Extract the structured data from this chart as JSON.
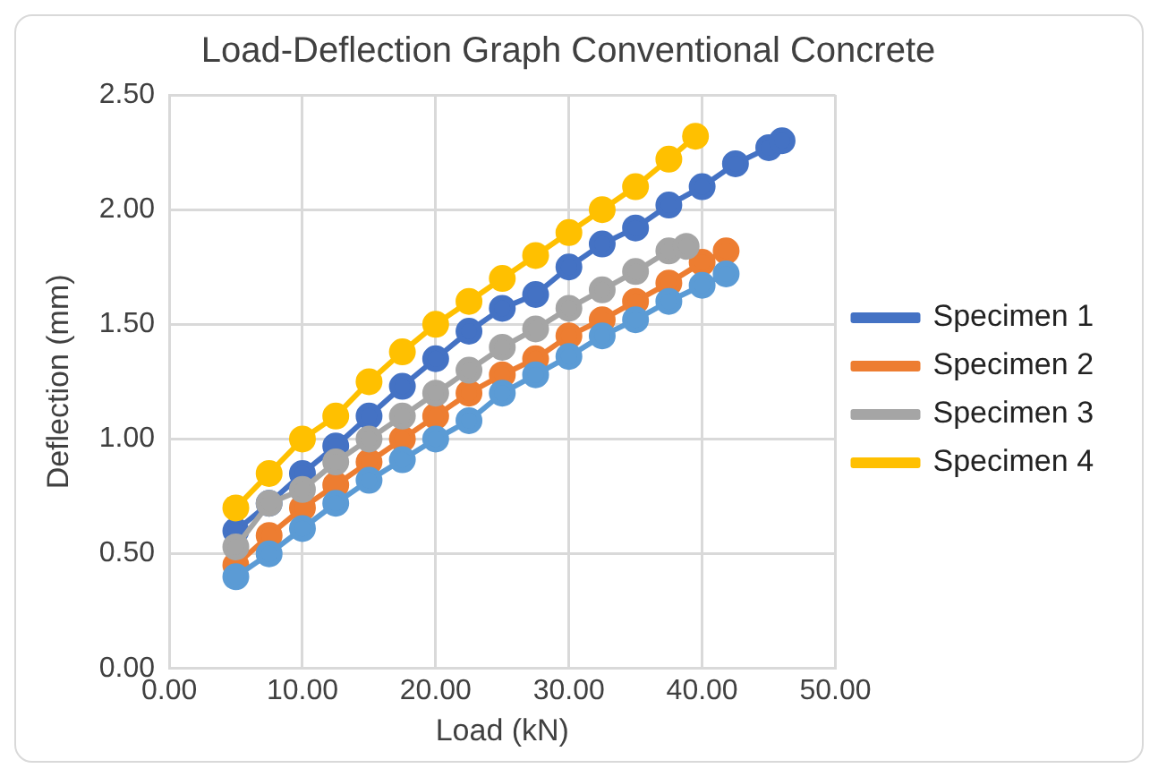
{
  "chart_data": {
    "type": "line",
    "title": "Load-Deflection Graph Conventional Concrete",
    "xlabel": "Load (kN)",
    "ylabel": "Deflection (mm)",
    "xlim": [
      0,
      50
    ],
    "ylim": [
      0,
      2.5
    ],
    "xticks": [
      {
        "value": 0,
        "label": "0.00"
      },
      {
        "value": 10,
        "label": "10.00"
      },
      {
        "value": 20,
        "label": "20.00"
      },
      {
        "value": 30,
        "label": "30.00"
      },
      {
        "value": 40,
        "label": "40.00"
      },
      {
        "value": 50,
        "label": "50.00"
      }
    ],
    "yticks": [
      {
        "value": 0,
        "label": "0.00"
      },
      {
        "value": 0.5,
        "label": "0.50"
      },
      {
        "value": 1,
        "label": "1.00"
      },
      {
        "value": 1.5,
        "label": "1.50"
      },
      {
        "value": 2,
        "label": "2.00"
      },
      {
        "value": 2.5,
        "label": "2.50"
      }
    ],
    "grid": true,
    "legend": "right",
    "marker": "circle",
    "line_style": "solid",
    "series": [
      {
        "name": "Specimen 1",
        "color": "#4472c4",
        "x": [
          5,
          7.5,
          10,
          12.5,
          15,
          17.5,
          20,
          22.5,
          25,
          27.5,
          30,
          32.5,
          35,
          37.5,
          40,
          42.5,
          45,
          46
        ],
        "values": [
          0.6,
          0.72,
          0.85,
          0.97,
          1.1,
          1.23,
          1.35,
          1.47,
          1.57,
          1.63,
          1.75,
          1.85,
          1.92,
          2.02,
          2.1,
          2.2,
          2.27,
          2.3
        ]
      },
      {
        "name": "Specimen 2",
        "color": "#ed7d31",
        "x": [
          5,
          7.5,
          10,
          12.5,
          15,
          17.5,
          20,
          22.5,
          25,
          27.5,
          30,
          32.5,
          35,
          37.5,
          40,
          41.8
        ],
        "values": [
          0.45,
          0.58,
          0.7,
          0.8,
          0.9,
          1.0,
          1.1,
          1.2,
          1.28,
          1.35,
          1.45,
          1.52,
          1.6,
          1.68,
          1.77,
          1.82
        ]
      },
      {
        "name": "Specimen 3",
        "color": "#a5a5a5",
        "x": [
          5,
          7.5,
          10,
          12.5,
          15,
          17.5,
          20,
          22.5,
          25,
          27.5,
          30,
          32.5,
          35,
          37.5,
          38.8
        ],
        "values": [
          0.53,
          0.72,
          0.78,
          0.9,
          1.0,
          1.1,
          1.2,
          1.3,
          1.4,
          1.48,
          1.57,
          1.65,
          1.73,
          1.82,
          1.84
        ]
      },
      {
        "name": "Specimen 4",
        "color": "#ffc000",
        "x": [
          5,
          7.5,
          10,
          12.5,
          15,
          17.5,
          20,
          22.5,
          25,
          27.5,
          30,
          32.5,
          35,
          37.5,
          39.5
        ],
        "values": [
          0.7,
          0.85,
          1.0,
          1.1,
          1.25,
          1.38,
          1.5,
          1.6,
          1.7,
          1.8,
          1.9,
          2.0,
          2.1,
          2.22,
          2.32
        ]
      },
      {
        "color": "#5b9bd5",
        "x": [
          5,
          7.5,
          10,
          12.5,
          15,
          17.5,
          20,
          22.5,
          25,
          27.5,
          30,
          32.5,
          35,
          37.5,
          40,
          41.8
        ],
        "values": [
          0.4,
          0.5,
          0.61,
          0.72,
          0.82,
          0.91,
          1.0,
          1.08,
          1.2,
          1.28,
          1.36,
          1.45,
          1.52,
          1.6,
          1.67,
          1.72
        ]
      }
    ]
  }
}
